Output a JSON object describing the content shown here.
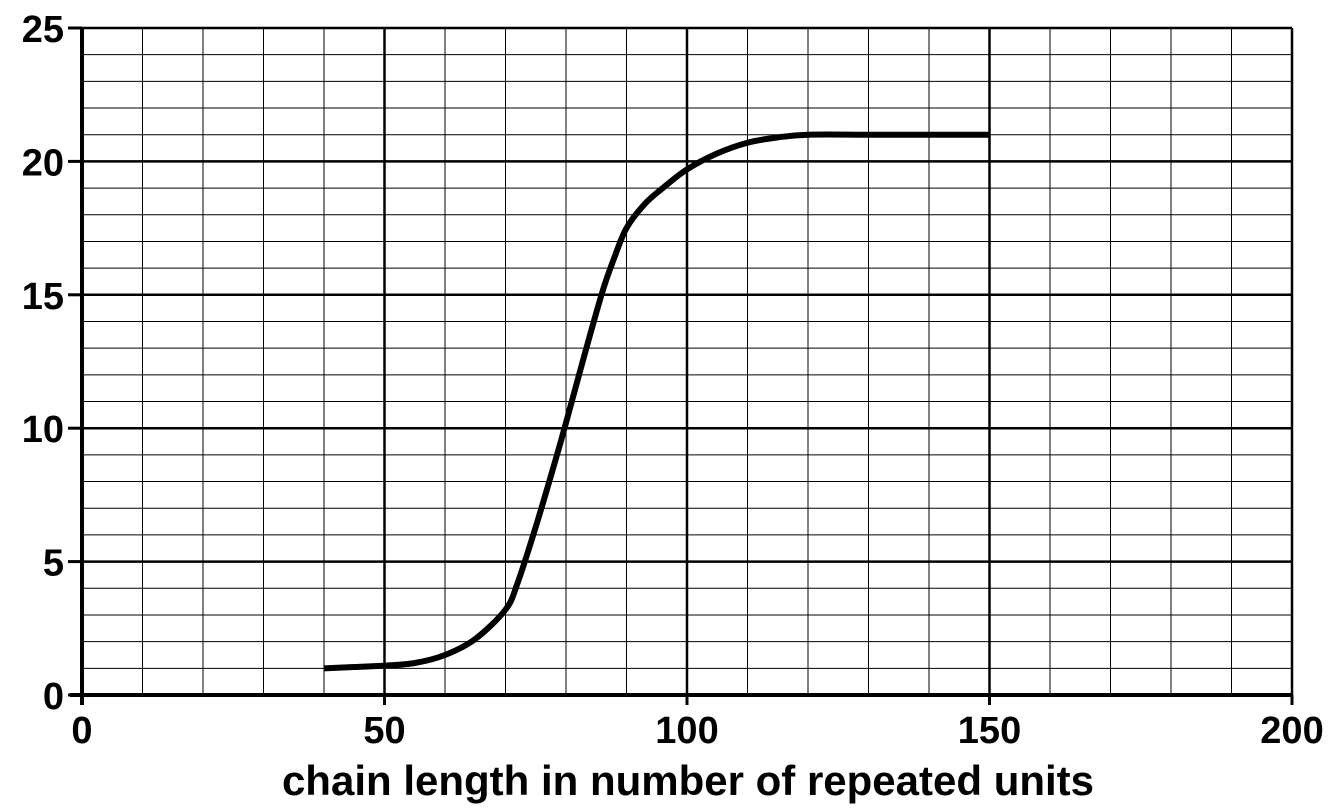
{
  "chart_data": {
    "type": "line",
    "title": "",
    "xlabel": "chain length in number of repeated units",
    "ylabel": "",
    "xlim": [
      0,
      200
    ],
    "ylim": [
      0,
      25
    ],
    "x_ticks": [
      0,
      50,
      100,
      150,
      200
    ],
    "y_ticks": [
      0,
      5,
      10,
      15,
      20,
      25
    ],
    "x_tick_labels": [
      "0",
      "50",
      "100",
      "150",
      "200"
    ],
    "y_tick_labels": [
      "0",
      "5",
      "10",
      "15",
      "20",
      "25"
    ],
    "grid": {
      "on": true,
      "x_minor_step": 10,
      "x_major_step": 50,
      "y_minor_step": 1,
      "y_major_step": 5
    },
    "legend": "none",
    "series": [
      {
        "color": "#000000",
        "x": [
          40,
          45,
          50,
          55,
          60,
          65,
          70,
          72,
          75,
          78,
          80,
          83,
          86,
          88,
          90,
          93,
          96,
          100,
          105,
          110,
          115,
          120,
          130,
          140,
          150
        ],
        "y": [
          1.0,
          1.05,
          1.1,
          1.2,
          1.5,
          2.1,
          3.2,
          4.2,
          6.3,
          8.6,
          10.2,
          12.7,
          15.1,
          16.4,
          17.5,
          18.4,
          19.0,
          19.7,
          20.3,
          20.7,
          20.9,
          21.0,
          21.0,
          21.0,
          21.0
        ]
      }
    ]
  }
}
